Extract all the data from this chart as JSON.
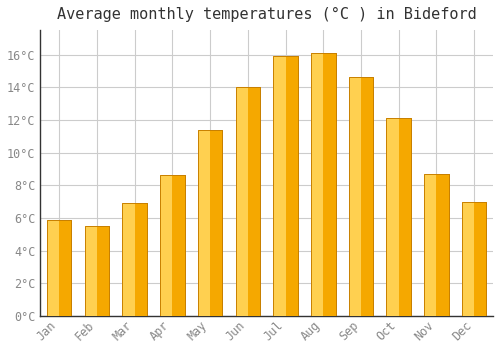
{
  "months": [
    "Jan",
    "Feb",
    "Mar",
    "Apr",
    "May",
    "Jun",
    "Jul",
    "Aug",
    "Sep",
    "Oct",
    "Nov",
    "Dec"
  ],
  "temperatures": [
    5.9,
    5.5,
    6.9,
    8.6,
    11.4,
    14.0,
    15.9,
    16.1,
    14.6,
    12.1,
    8.7,
    7.0
  ],
  "bar_color_right": "#F5A800",
  "bar_color_left": "#FFD050",
  "bar_edge_color": "#C88000",
  "background_color": "#FFFFFF",
  "grid_color": "#CCCCCC",
  "title": "Average monthly temperatures (°C ) in Bideford",
  "title_fontsize": 11,
  "ylabel_ticks": [
    "0°C",
    "2°C",
    "4°C",
    "6°C",
    "8°C",
    "10°C",
    "12°C",
    "14°C",
    "16°C"
  ],
  "ytick_values": [
    0,
    2,
    4,
    6,
    8,
    10,
    12,
    14,
    16
  ],
  "ylim": [
    0,
    17.5
  ],
  "tick_color": "#888888",
  "tick_fontsize": 8.5,
  "title_color": "#333333",
  "font_family": "monospace",
  "bar_width": 0.65
}
